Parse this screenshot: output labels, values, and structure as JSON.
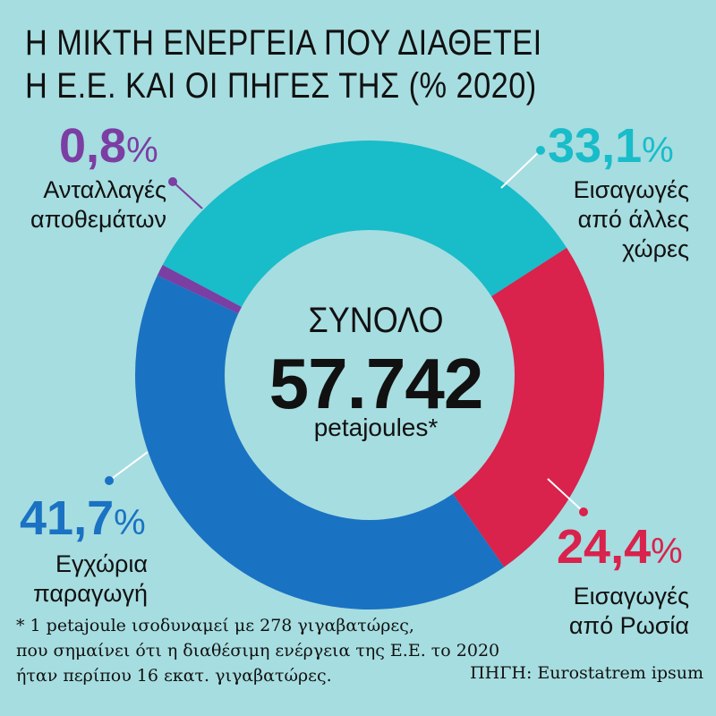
{
  "title_lines": [
    "Η ΜΙΚΤΗ ΕΝΕΡΓΕΙΑ ΠΟΥ ΔΙΑΘΕΤΕΙ",
    "Η Ε.Ε. ΚΑΙ ΟΙ ΠΗΓΕΣ ΤΗΣ (% 2020)"
  ],
  "center": {
    "heading": "ΣΥΝΟΛΟ",
    "total": "57.742",
    "unit": "petajoules*"
  },
  "footnote_lines": [
    "* 1 petajoule ισοδυναμεί με 278 γιγαβατώρες,",
    "που σημαίνει ότι η διαθέσιμη ενέργεια της Ε.Ε. το 2020",
    "ήταν περίπου 16 εκατ. γιγαβατώρες."
  ],
  "source": "ΠΗΓΗ: Eurostatrem ipsum",
  "chart_data": {
    "type": "pie",
    "donut": true,
    "title": "Η ΜΙΚΤΗ ΕΝΕΡΓΕΙΑ ΠΟΥ ΔΙΑΘΕΤΕΙ Η Ε.Ε. ΚΑΙ ΟΙ ΠΗΓΕΣ ΤΗΣ (% 2020)",
    "unit": "%",
    "slices": [
      {
        "value_text": "33,1",
        "value": 33.1,
        "label_lines": [
          "Εισαγωγές",
          "από άλλες",
          "χώρες"
        ],
        "color": "#19bcc9"
      },
      {
        "value_text": "24,4",
        "value": 24.4,
        "label_lines": [
          "Εισαγωγές",
          "από Ρωσία"
        ],
        "color": "#d9224c"
      },
      {
        "value_text": "41,7",
        "value": 41.7,
        "label_lines": [
          "Εγχώρια",
          "παραγωγή"
        ],
        "color": "#1a72c3"
      },
      {
        "value_text": "0,8",
        "value": 0.8,
        "label_lines": [
          "Ανταλλαγές",
          "αποθεμάτων"
        ],
        "color": "#7b3ea3"
      }
    ]
  }
}
